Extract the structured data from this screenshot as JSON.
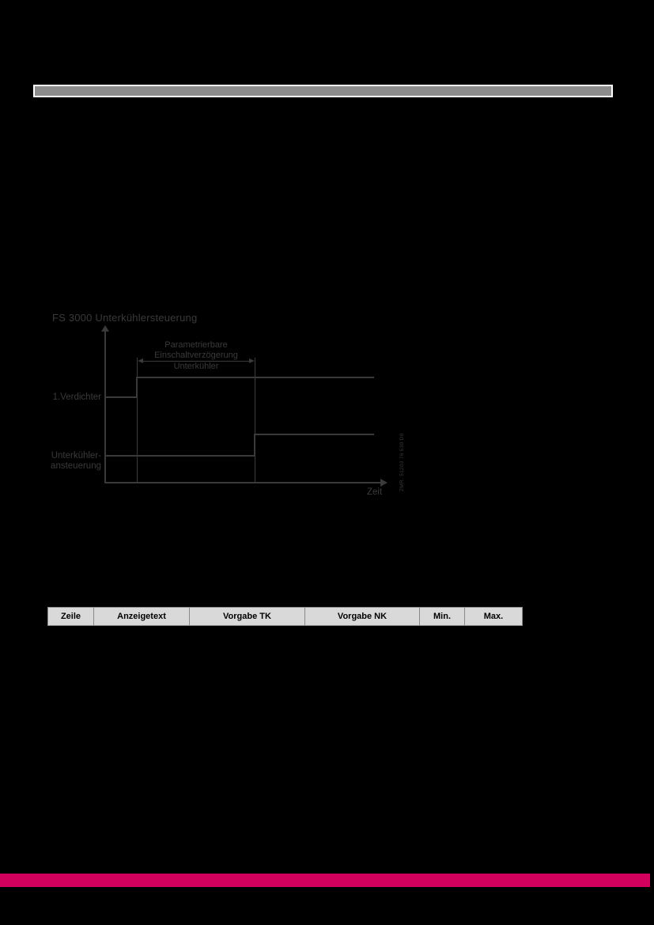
{
  "colors": {
    "page_bg": "#000000",
    "top_bar_fill": "#8c8c8c",
    "top_bar_border": "#ffffff",
    "diagram_ink": "#3a3a3a",
    "table_header_bg": "#d9d9d9",
    "table_border": "#8a8a8a",
    "table_text": "#000000",
    "footer_bar": "#d4005e"
  },
  "diagram": {
    "title": "FS 3000 Unterkühlersteuerung",
    "delay_label_line1": "Parametrierbare",
    "delay_label_line2": "Einschaltverzögerung",
    "delay_label_line3": "Unterkühler",
    "signal1_label": "1.Verdichter",
    "signal2_label_line1": "Unterkühler-",
    "signal2_label_line2": "ansteuerung",
    "x_axis_label": "Zeit",
    "side_note": "ZMR. 51203 76 530 D0",
    "signals": [
      {
        "name": "1.Verdichter",
        "state": "switches on first, then stays on"
      },
      {
        "name": "Unterkühleransteuerung",
        "state": "switches on after the parameterizable delay, then stays on"
      }
    ]
  },
  "table": {
    "headers": [
      "Zeile",
      "Anzeigetext",
      "Vorgabe TK",
      "Vorgabe NK",
      "Min.",
      "Max."
    ]
  }
}
